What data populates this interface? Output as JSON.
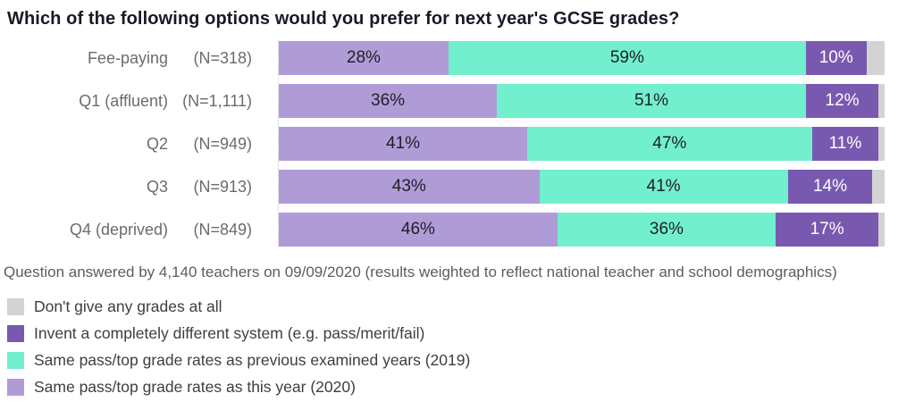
{
  "title": "Which of the following options would you prefer for next year's GCSE grades?",
  "footnote": "Question answered by 4,140 teachers on 09/09/2020 (results weighted to reflect national teacher and school demographics)",
  "colors": {
    "this_year_2020": "#af9cd7",
    "previous_2019": "#72efcd",
    "different_system": "#7959b0",
    "no_grades": "#d3d3d3"
  },
  "chart_data": {
    "type": "bar",
    "orientation": "horizontal",
    "stacked": true,
    "xlim": [
      0,
      100
    ],
    "value_suffix": "%",
    "label_min_value": 5,
    "grid": false,
    "categories": [
      "Fee-paying",
      "Q1 (affluent)",
      "Q2",
      "Q3",
      "Q4 (deprived)"
    ],
    "sample_sizes": [
      "(N=318)",
      "(N=1,111)",
      "(N=949)",
      "(N=913)",
      "(N=849)"
    ],
    "series": [
      {
        "key": "this_year_2020",
        "name": "Same pass/top grade rates as this year (2020)",
        "color": "#af9cd7",
        "text_color": "dark",
        "values": [
          28,
          36,
          41,
          43,
          46
        ]
      },
      {
        "key": "previous_2019",
        "name": "Same pass/top grade rates as previous examined years (2019)",
        "color": "#72efcd",
        "text_color": "dark",
        "values": [
          59,
          51,
          47,
          41,
          36
        ]
      },
      {
        "key": "different_system",
        "name": "Invent a completely different system (e.g. pass/merit/fail)",
        "color": "#7959b0",
        "text_color": "light",
        "values": [
          10,
          12,
          11,
          14,
          17
        ]
      },
      {
        "key": "no_grades",
        "name": "Don't give any grades at all",
        "color": "#d3d3d3",
        "text_color": "dark",
        "values": [
          3,
          1,
          1,
          2,
          1
        ]
      }
    ]
  },
  "legend": {
    "position": "bottom-left",
    "items": [
      {
        "key": "no_grades",
        "label": "Don't give any grades at all",
        "color": "#d3d3d3"
      },
      {
        "key": "different_system",
        "label": "Invent a completely different system (e.g. pass/merit/fail)",
        "color": "#7959b0"
      },
      {
        "key": "previous_2019",
        "label": "Same pass/top grade rates as previous examined years (2019)",
        "color": "#72efcd"
      },
      {
        "key": "this_year_2020",
        "label": "Same pass/top grade rates as this year (2020)",
        "color": "#af9cd7"
      }
    ]
  }
}
